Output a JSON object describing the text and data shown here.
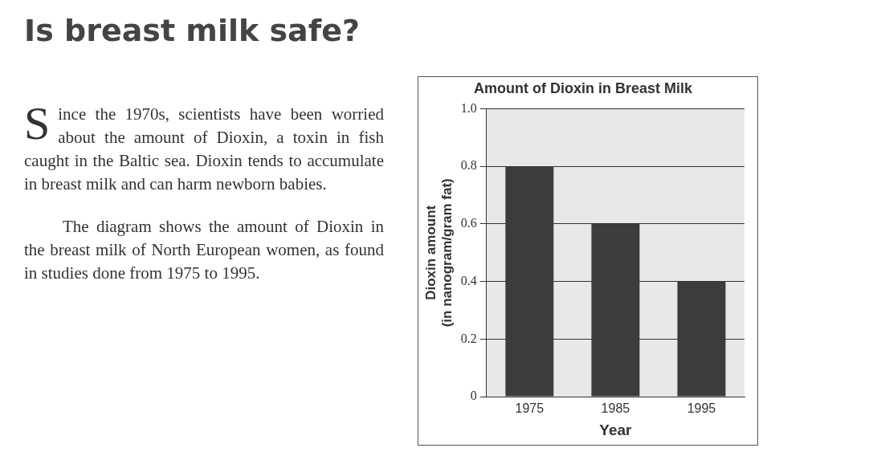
{
  "chart_data": {
    "type": "bar",
    "title": "Amount of Dioxin in Breast Milk",
    "xlabel": "Year",
    "ylabel": "Dioxin amount\n(in nanogram/gram fat)",
    "categories": [
      "1975",
      "1985",
      "1995"
    ],
    "values": [
      0.8,
      0.6,
      0.4
    ],
    "color": "#3c3c3c",
    "ylim": [
      0,
      1
    ],
    "yticks": [
      0,
      0.2,
      0.4,
      0.6,
      0.8,
      {
        "value": 1,
        "label": "1.0"
      }
    ],
    "grid": "y",
    "annotations": [
      "Is breast milk safe?",
      "Since the 1970s, scientists have been worried about the amount of Dioxin, a toxin in fish caught in the Baltic sea. Dioxin tends to accumulate in breast milk and can harm newborn babies.",
      "The diagram shows the amount of Dioxin in the breast milk of North European women, as found in studies done from 1975 to 1995."
    ]
  }
}
